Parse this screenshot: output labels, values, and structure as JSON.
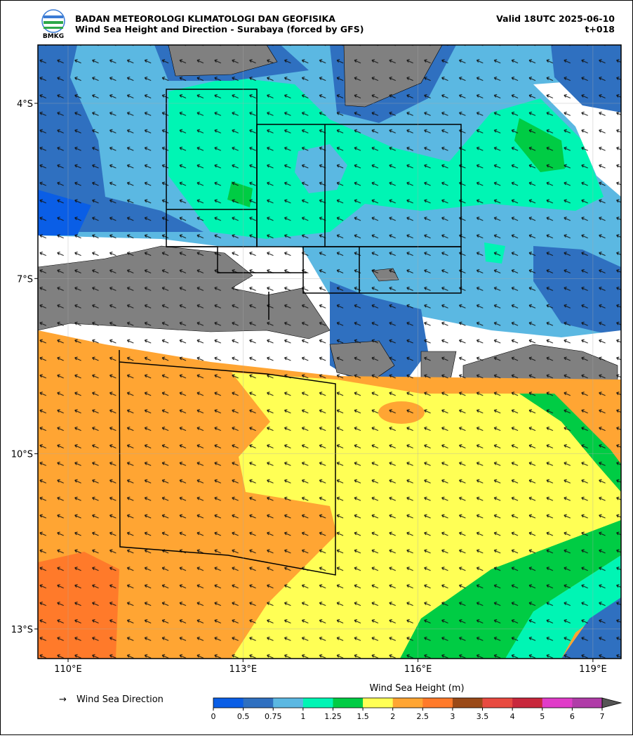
{
  "header": {
    "agency": "BADAN METEOROLOGI KLIMATOLOGI DAN GEOFISIKA",
    "title": "Wind Sea Height and Direction - Surabaya (forced by GFS)",
    "valid": "Valid 18UTC 2025-06-10",
    "lead": "t+018",
    "logo_text": "BMKG"
  },
  "map": {
    "lon_ticks": [
      {
        "value": 110,
        "label": "110°E"
      },
      {
        "value": 113,
        "label": "113°E"
      },
      {
        "value": 116,
        "label": "116°E"
      },
      {
        "value": 119,
        "label": "119°E"
      }
    ],
    "lat_ticks": [
      {
        "value": -4,
        "label": "4°S"
      },
      {
        "value": -7,
        "label": "7°S"
      },
      {
        "value": -10,
        "label": "10°S"
      },
      {
        "value": -13,
        "label": "13°S"
      }
    ]
  },
  "legend": {
    "arrow": "→",
    "label": "Wind Sea Direction"
  },
  "colorbar": {
    "title": "Wind Sea Height (m)",
    "ticks": [
      0,
      0.5,
      0.75,
      1,
      1.25,
      1.5,
      2,
      2.5,
      3,
      3.5,
      4,
      5,
      6,
      7
    ],
    "colors": [
      "#0a5ee6",
      "#2f70c0",
      "#5bb8e2",
      "#00f5b4",
      "#00cc44",
      "#ffff55",
      "#ffa533",
      "#ff7a2a",
      "#9a4a18",
      "#e84a40",
      "#c8283c",
      "#e03cc8",
      "#b03ca8"
    ],
    "extend_color": "#555555"
  }
}
